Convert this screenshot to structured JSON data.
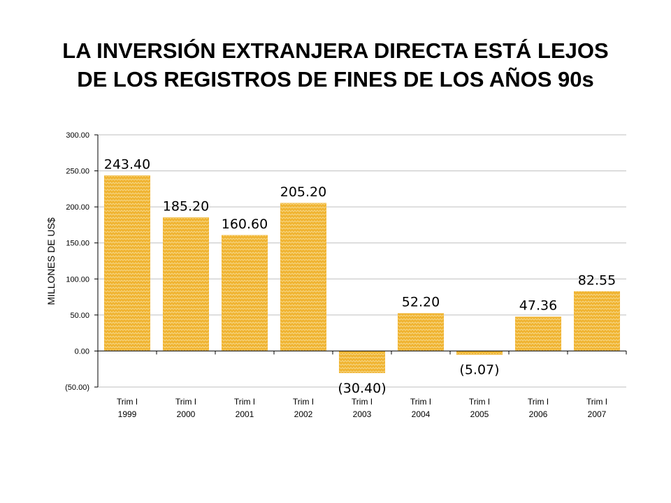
{
  "title": {
    "line1": "LA INVERSIÓN EXTRANJERA DIRECTA ESTÁ LEJOS",
    "line2": "DE LOS REGISTROS DE FINES DE LOS AÑOS 90s"
  },
  "colors": {
    "bar_fill": "#F0B432",
    "bar_pattern": "#F7D98A",
    "gridline": "#BFBFBF",
    "axis": "#000000"
  },
  "chart_data": {
    "type": "bar",
    "title": "LA INVERSIÓN EXTRANJERA DIRECTA ESTÁ LEJOS DE LOS REGISTROS DE FINES DE LOS AÑOS 90s",
    "ylabel": "MILLONES DE US$",
    "xlabel": "",
    "ylim": [
      -50,
      300
    ],
    "yticks": [
      300,
      250,
      200,
      150,
      100,
      50,
      0,
      -50
    ],
    "ytick_labels": [
      "300.00",
      "250.00",
      "200.00",
      "150.00",
      "100.00",
      "50.00",
      "0.00",
      "(50.00)"
    ],
    "grid": true,
    "categories": [
      {
        "line1": "Trim I",
        "line2": "1999"
      },
      {
        "line1": "Trim I",
        "line2": "2000"
      },
      {
        "line1": "Trim I",
        "line2": "2001"
      },
      {
        "line1": "Trim I",
        "line2": "2002"
      },
      {
        "line1": "Trim I",
        "line2": "2003"
      },
      {
        "line1": "Trim I",
        "line2": "2004"
      },
      {
        "line1": "Trim I",
        "line2": "2005"
      },
      {
        "line1": "Trim I",
        "line2": "2006"
      },
      {
        "line1": "Trim I",
        "line2": "2007"
      }
    ],
    "values": [
      243.4,
      185.2,
      160.6,
      205.2,
      -30.4,
      52.2,
      -5.07,
      47.36,
      82.55
    ],
    "data_labels": [
      "243.40",
      "185.20",
      "160.60",
      "205.20",
      "(30.40)",
      "52.20",
      "(5.07)",
      "47.36",
      "82.55"
    ]
  }
}
